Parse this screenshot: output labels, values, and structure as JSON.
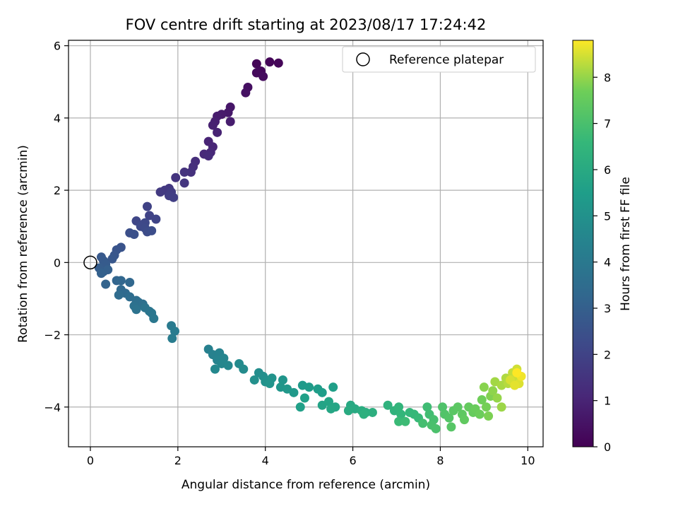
{
  "chart_data": {
    "type": "scatter",
    "title": "FOV centre drift starting at 2023/08/17 17:24:42",
    "xlabel": "Angular distance from reference (arcmin)",
    "ylabel": "Rotation from reference (arcmin)",
    "xlim": [
      -0.5,
      10.35
    ],
    "ylim": [
      -5.1,
      6.15
    ],
    "xticks": [
      0,
      2,
      4,
      6,
      8,
      10
    ],
    "yticks": [
      -4,
      -2,
      0,
      2,
      4,
      6
    ],
    "grid": true,
    "legend": {
      "placement": "top-right",
      "entries": [
        "Reference platepar"
      ]
    },
    "reference_point": {
      "x": 0,
      "y": 0
    },
    "colorbar": {
      "label": "Hours from first FF file",
      "colormap": "viridis",
      "range": [
        0,
        8.8
      ],
      "ticks": [
        0,
        1,
        2,
        3,
        4,
        5,
        6,
        7,
        8
      ]
    },
    "points": [
      {
        "x": 3.8,
        "y": 5.5,
        "t": 0.1
      },
      {
        "x": 4.1,
        "y": 5.55,
        "t": 0.12
      },
      {
        "x": 4.3,
        "y": 5.52,
        "t": 0.15
      },
      {
        "x": 3.9,
        "y": 5.3,
        "t": 0.2
      },
      {
        "x": 3.8,
        "y": 5.25,
        "t": 0.25
      },
      {
        "x": 3.95,
        "y": 5.15,
        "t": 0.3
      },
      {
        "x": 3.6,
        "y": 4.85,
        "t": 0.4
      },
      {
        "x": 3.55,
        "y": 4.7,
        "t": 0.45
      },
      {
        "x": 3.2,
        "y": 4.3,
        "t": 0.6
      },
      {
        "x": 3.15,
        "y": 4.15,
        "t": 0.65
      },
      {
        "x": 3.0,
        "y": 4.1,
        "t": 0.7
      },
      {
        "x": 2.9,
        "y": 4.05,
        "t": 0.75
      },
      {
        "x": 3.2,
        "y": 3.9,
        "t": 0.8
      },
      {
        "x": 2.85,
        "y": 3.9,
        "t": 0.85
      },
      {
        "x": 2.8,
        "y": 3.8,
        "t": 0.9
      },
      {
        "x": 2.9,
        "y": 3.6,
        "t": 0.95
      },
      {
        "x": 2.7,
        "y": 3.35,
        "t": 1.0
      },
      {
        "x": 2.8,
        "y": 3.2,
        "t": 1.05
      },
      {
        "x": 2.75,
        "y": 3.05,
        "t": 1.1
      },
      {
        "x": 2.6,
        "y": 3.0,
        "t": 1.15
      },
      {
        "x": 2.7,
        "y": 2.95,
        "t": 1.2
      },
      {
        "x": 2.4,
        "y": 2.8,
        "t": 1.3
      },
      {
        "x": 2.35,
        "y": 2.65,
        "t": 1.35
      },
      {
        "x": 2.3,
        "y": 2.5,
        "t": 1.4
      },
      {
        "x": 2.15,
        "y": 2.5,
        "t": 1.45
      },
      {
        "x": 1.95,
        "y": 2.35,
        "t": 1.5
      },
      {
        "x": 2.15,
        "y": 2.2,
        "t": 1.55
      },
      {
        "x": 1.8,
        "y": 2.05,
        "t": 1.6
      },
      {
        "x": 1.7,
        "y": 2.0,
        "t": 1.65
      },
      {
        "x": 1.6,
        "y": 1.95,
        "t": 1.7
      },
      {
        "x": 1.85,
        "y": 1.95,
        "t": 1.75
      },
      {
        "x": 1.8,
        "y": 1.85,
        "t": 1.8
      },
      {
        "x": 1.9,
        "y": 1.8,
        "t": 1.85
      },
      {
        "x": 1.3,
        "y": 1.55,
        "t": 1.95
      },
      {
        "x": 1.35,
        "y": 1.3,
        "t": 2.0
      },
      {
        "x": 1.5,
        "y": 1.2,
        "t": 2.05
      },
      {
        "x": 1.05,
        "y": 1.15,
        "t": 2.1
      },
      {
        "x": 1.25,
        "y": 1.1,
        "t": 2.15
      },
      {
        "x": 1.15,
        "y": 1.0,
        "t": 2.2
      },
      {
        "x": 1.25,
        "y": 0.95,
        "t": 2.25
      },
      {
        "x": 1.3,
        "y": 0.85,
        "t": 2.3
      },
      {
        "x": 1.4,
        "y": 0.88,
        "t": 2.35
      },
      {
        "x": 0.9,
        "y": 0.82,
        "t": 2.4
      },
      {
        "x": 1.0,
        "y": 0.78,
        "t": 2.45
      },
      {
        "x": 0.7,
        "y": 0.42,
        "t": 2.55
      },
      {
        "x": 0.6,
        "y": 0.35,
        "t": 2.6
      },
      {
        "x": 0.55,
        "y": 0.2,
        "t": 2.65
      },
      {
        "x": 0.5,
        "y": 0.1,
        "t": 2.7
      },
      {
        "x": 0.25,
        "y": 0.15,
        "t": 2.75
      },
      {
        "x": 0.3,
        "y": 0.05,
        "t": 2.8
      },
      {
        "x": 0.35,
        "y": -0.05,
        "t": 2.85
      },
      {
        "x": 0.2,
        "y": -0.15,
        "t": 2.9
      },
      {
        "x": 0.3,
        "y": -0.25,
        "t": 2.95
      },
      {
        "x": 0.4,
        "y": -0.2,
        "t": 3.0
      },
      {
        "x": 0.25,
        "y": -0.3,
        "t": 3.05
      },
      {
        "x": 0.35,
        "y": -0.6,
        "t": 3.15
      },
      {
        "x": 0.6,
        "y": -0.5,
        "t": 3.2
      },
      {
        "x": 0.7,
        "y": -0.5,
        "t": 3.25
      },
      {
        "x": 0.9,
        "y": -0.55,
        "t": 3.3
      },
      {
        "x": 0.7,
        "y": -0.75,
        "t": 3.35
      },
      {
        "x": 0.8,
        "y": -0.85,
        "t": 3.4
      },
      {
        "x": 0.65,
        "y": -0.9,
        "t": 3.45
      },
      {
        "x": 0.9,
        "y": -0.95,
        "t": 3.5
      },
      {
        "x": 1.05,
        "y": -1.05,
        "t": 3.55
      },
      {
        "x": 1.1,
        "y": -1.1,
        "t": 3.6
      },
      {
        "x": 1.2,
        "y": -1.15,
        "t": 3.65
      },
      {
        "x": 1.0,
        "y": -1.2,
        "t": 3.7
      },
      {
        "x": 1.05,
        "y": -1.3,
        "t": 3.75
      },
      {
        "x": 1.25,
        "y": -1.25,
        "t": 3.8
      },
      {
        "x": 1.35,
        "y": -1.35,
        "t": 3.85
      },
      {
        "x": 1.4,
        "y": -1.4,
        "t": 3.9
      },
      {
        "x": 1.45,
        "y": -1.55,
        "t": 3.95
      },
      {
        "x": 1.85,
        "y": -1.75,
        "t": 4.05
      },
      {
        "x": 1.93,
        "y": -1.9,
        "t": 4.1
      },
      {
        "x": 1.87,
        "y": -2.1,
        "t": 4.15
      },
      {
        "x": 2.7,
        "y": -2.4,
        "t": 4.3
      },
      {
        "x": 2.8,
        "y": -2.55,
        "t": 4.35
      },
      {
        "x": 2.95,
        "y": -2.5,
        "t": 4.4
      },
      {
        "x": 2.9,
        "y": -2.7,
        "t": 4.45
      },
      {
        "x": 3.05,
        "y": -2.65,
        "t": 4.5
      },
      {
        "x": 3.0,
        "y": -2.8,
        "t": 4.55
      },
      {
        "x": 3.15,
        "y": -2.85,
        "t": 4.6
      },
      {
        "x": 2.85,
        "y": -2.95,
        "t": 4.65
      },
      {
        "x": 3.4,
        "y": -2.8,
        "t": 4.7
      },
      {
        "x": 3.5,
        "y": -2.95,
        "t": 4.75
      },
      {
        "x": 3.85,
        "y": -3.05,
        "t": 4.85
      },
      {
        "x": 3.95,
        "y": -3.15,
        "t": 4.9
      },
      {
        "x": 3.75,
        "y": -3.25,
        "t": 4.95
      },
      {
        "x": 4.0,
        "y": -3.3,
        "t": 5.0
      },
      {
        "x": 4.15,
        "y": -3.2,
        "t": 5.05
      },
      {
        "x": 4.1,
        "y": -3.35,
        "t": 5.1
      },
      {
        "x": 4.4,
        "y": -3.25,
        "t": 5.15
      },
      {
        "x": 4.35,
        "y": -3.45,
        "t": 5.2
      },
      {
        "x": 4.5,
        "y": -3.5,
        "t": 5.25
      },
      {
        "x": 4.65,
        "y": -3.6,
        "t": 5.3
      },
      {
        "x": 4.85,
        "y": -3.4,
        "t": 5.35
      },
      {
        "x": 5.0,
        "y": -3.45,
        "t": 5.4
      },
      {
        "x": 5.2,
        "y": -3.5,
        "t": 5.45
      },
      {
        "x": 5.3,
        "y": -3.6,
        "t": 5.5
      },
      {
        "x": 5.55,
        "y": -3.45,
        "t": 5.55
      },
      {
        "x": 4.9,
        "y": -3.75,
        "t": 5.6
      },
      {
        "x": 4.8,
        "y": -4.0,
        "t": 5.6
      },
      {
        "x": 5.3,
        "y": -3.95,
        "t": 5.7
      },
      {
        "x": 5.45,
        "y": -3.85,
        "t": 5.75
      },
      {
        "x": 5.6,
        "y": -4.0,
        "t": 5.8
      },
      {
        "x": 5.5,
        "y": -4.05,
        "t": 5.85
      },
      {
        "x": 5.95,
        "y": -3.95,
        "t": 5.95
      },
      {
        "x": 6.05,
        "y": -4.05,
        "t": 6.0
      },
      {
        "x": 5.9,
        "y": -4.1,
        "t": 6.05
      },
      {
        "x": 6.2,
        "y": -4.1,
        "t": 6.1
      },
      {
        "x": 6.3,
        "y": -4.15,
        "t": 6.15
      },
      {
        "x": 6.45,
        "y": -4.15,
        "t": 6.2
      },
      {
        "x": 6.25,
        "y": -4.2,
        "t": 6.25
      },
      {
        "x": 6.8,
        "y": -3.95,
        "t": 6.35
      },
      {
        "x": 6.95,
        "y": -4.1,
        "t": 6.4
      },
      {
        "x": 7.05,
        "y": -4.0,
        "t": 6.45
      },
      {
        "x": 7.1,
        "y": -4.2,
        "t": 6.5
      },
      {
        "x": 7.3,
        "y": -4.15,
        "t": 6.55
      },
      {
        "x": 7.4,
        "y": -4.2,
        "t": 6.6
      },
      {
        "x": 7.5,
        "y": -4.3,
        "t": 6.65
      },
      {
        "x": 7.05,
        "y": -4.4,
        "t": 6.7
      },
      {
        "x": 7.2,
        "y": -4.4,
        "t": 6.75
      },
      {
        "x": 7.7,
        "y": -4.0,
        "t": 6.8
      },
      {
        "x": 7.75,
        "y": -4.2,
        "t": 6.85
      },
      {
        "x": 7.6,
        "y": -4.45,
        "t": 6.9
      },
      {
        "x": 7.85,
        "y": -4.35,
        "t": 6.95
      },
      {
        "x": 7.8,
        "y": -4.5,
        "t": 7.0
      },
      {
        "x": 7.9,
        "y": -4.6,
        "t": 7.05
      },
      {
        "x": 8.05,
        "y": -4.0,
        "t": 7.1
      },
      {
        "x": 8.1,
        "y": -4.2,
        "t": 7.15
      },
      {
        "x": 8.2,
        "y": -4.3,
        "t": 7.2
      },
      {
        "x": 8.25,
        "y": -4.55,
        "t": 7.25
      },
      {
        "x": 8.3,
        "y": -4.1,
        "t": 7.3
      },
      {
        "x": 8.4,
        "y": -4.0,
        "t": 7.35
      },
      {
        "x": 8.5,
        "y": -4.2,
        "t": 7.4
      },
      {
        "x": 8.55,
        "y": -4.35,
        "t": 7.45
      },
      {
        "x": 8.65,
        "y": -4.0,
        "t": 7.5
      },
      {
        "x": 8.75,
        "y": -4.15,
        "t": 7.55
      },
      {
        "x": 8.8,
        "y": -4.05,
        "t": 7.6
      },
      {
        "x": 8.9,
        "y": -4.2,
        "t": 7.65
      },
      {
        "x": 8.95,
        "y": -3.8,
        "t": 7.7
      },
      {
        "x": 9.05,
        "y": -4.0,
        "t": 7.75
      },
      {
        "x": 9.1,
        "y": -4.25,
        "t": 7.8
      },
      {
        "x": 9.15,
        "y": -3.7,
        "t": 7.85
      },
      {
        "x": 9.0,
        "y": -3.45,
        "t": 7.9
      },
      {
        "x": 9.2,
        "y": -3.55,
        "t": 7.95
      },
      {
        "x": 9.3,
        "y": -3.75,
        "t": 8.0
      },
      {
        "x": 9.4,
        "y": -4.0,
        "t": 8.05
      },
      {
        "x": 9.25,
        "y": -3.3,
        "t": 8.1
      },
      {
        "x": 9.4,
        "y": -3.4,
        "t": 8.15
      },
      {
        "x": 9.5,
        "y": -3.2,
        "t": 8.2
      },
      {
        "x": 9.55,
        "y": -3.35,
        "t": 8.25
      },
      {
        "x": 9.65,
        "y": -3.05,
        "t": 8.35
      },
      {
        "x": 9.7,
        "y": -3.2,
        "t": 8.4
      },
      {
        "x": 9.75,
        "y": -2.95,
        "t": 8.45
      },
      {
        "x": 9.6,
        "y": -3.25,
        "t": 8.5
      },
      {
        "x": 9.8,
        "y": -3.35,
        "t": 8.55
      },
      {
        "x": 9.7,
        "y": -3.4,
        "t": 8.6
      },
      {
        "x": 9.85,
        "y": -3.15,
        "t": 8.7
      },
      {
        "x": 9.75,
        "y": -3.05,
        "t": 8.8
      }
    ]
  }
}
